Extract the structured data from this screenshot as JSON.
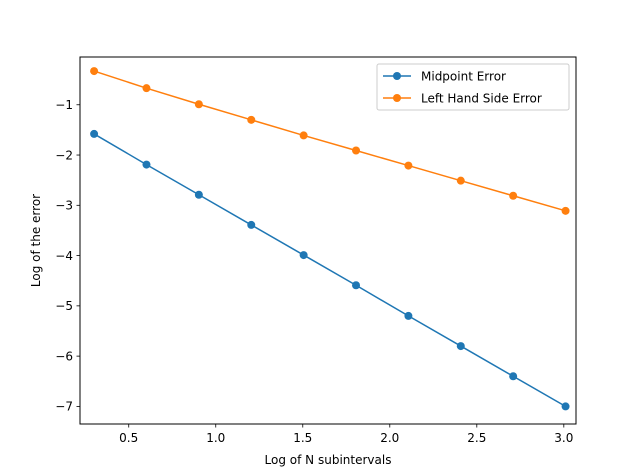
{
  "chart_data": {
    "type": "line",
    "title": "",
    "xlabel": "Log of N subintervals",
    "ylabel": "Log of the error",
    "xlim": [
      0.22,
      3.07
    ],
    "ylim": [
      -7.35,
      -0.05
    ],
    "xticks": [
      0.5,
      1.0,
      1.5,
      2.0,
      2.5,
      3.0
    ],
    "xtick_labels": [
      "0.5",
      "1.0",
      "1.5",
      "2.0",
      "2.5",
      "3.0"
    ],
    "yticks": [
      -7,
      -6,
      -5,
      -4,
      -3,
      -2,
      -1
    ],
    "ytick_labels": [
      "−7",
      "−6",
      "−5",
      "−4",
      "−3",
      "−2",
      "−1"
    ],
    "grid": false,
    "legend": "top-right",
    "x": [
      0.301,
      0.602,
      0.903,
      1.204,
      1.505,
      1.806,
      2.107,
      2.408,
      2.709,
      3.01
    ],
    "series": [
      {
        "name": "Midpoint Error",
        "color": "#1f77b4",
        "marker": "circle",
        "values": [
          -1.58,
          -2.19,
          -2.79,
          -3.39,
          -3.99,
          -4.59,
          -5.2,
          -5.8,
          -6.4,
          -7.0
        ]
      },
      {
        "name": "Left Hand Side Error",
        "color": "#ff7f0e",
        "marker": "circle",
        "values": [
          -0.33,
          -0.67,
          -0.99,
          -1.3,
          -1.61,
          -1.91,
          -2.21,
          -2.51,
          -2.81,
          -3.11
        ]
      }
    ]
  }
}
